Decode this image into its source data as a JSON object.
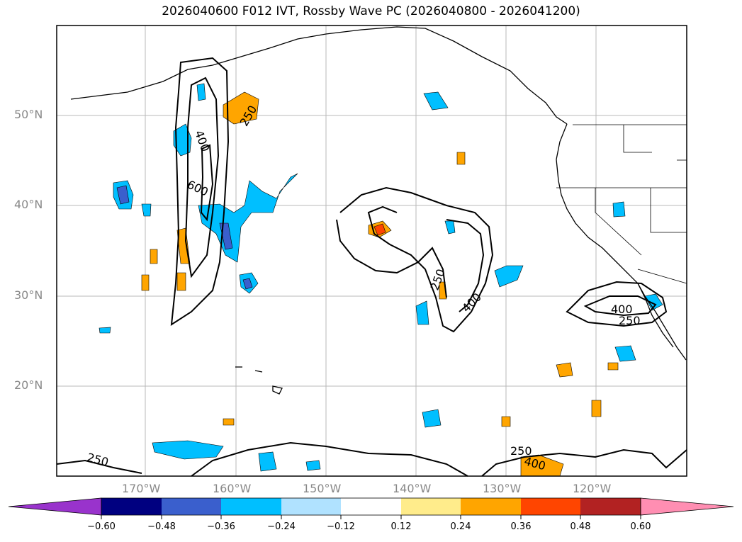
{
  "title": "2026040600 F012 IVT, Rossby Wave PC (2026040800 - 2026041200)",
  "map": {
    "lon_range": [
      -180,
      -110
    ],
    "lat_range": [
      10,
      60
    ],
    "gridlines": true,
    "lat_labels": [
      "50°N",
      "40°N",
      "30°N",
      "20°N"
    ],
    "lon_labels": [
      "170°W",
      "160°W",
      "150°W",
      "140°W",
      "130°W",
      "120°W"
    ],
    "contour_labels": [
      "250",
      "400",
      "600",
      "250",
      "400",
      "250",
      "400",
      "250",
      "250",
      "400"
    ],
    "colors": {
      "ocean": "#ffffff",
      "land_outline": "#000000",
      "grid": "#b0b0b0"
    }
  },
  "colorbar": {
    "levels": [
      "−0.60",
      "−0.48",
      "−0.36",
      "−0.24",
      "−0.12",
      "0.12",
      "0.24",
      "0.36",
      "0.48",
      "0.60"
    ],
    "colors": [
      "#9933cc",
      "#000080",
      "#3a5fcd",
      "#00bfff",
      "#b0e2ff",
      "#ffffff",
      "#ffec8b",
      "#ffa500",
      "#ff4500",
      "#b22222",
      "#ff8eb2"
    ],
    "extend": "both"
  }
}
